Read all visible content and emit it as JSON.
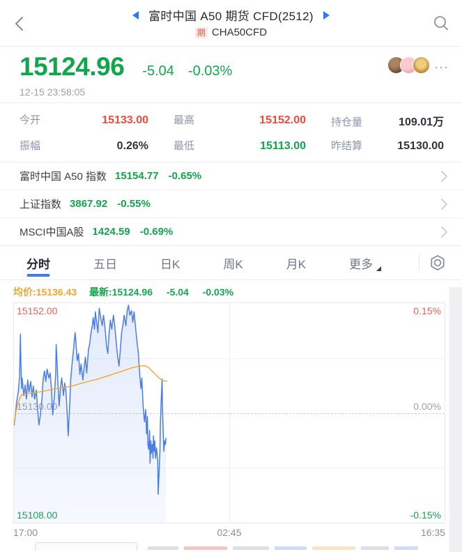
{
  "header": {
    "title": "富时中国 A50 期货 CFD(2512)",
    "badge": "期",
    "code": "CHA50CFD"
  },
  "quote": {
    "price": "15124.96",
    "change": "-5.04",
    "change_pct": "-0.03%",
    "timestamp": "12-15 23:58:05",
    "more": "···"
  },
  "stats": {
    "rows": [
      [
        {
          "label": "今开",
          "value": "15133.00"
        },
        {
          "label": "最高",
          "value": "15152.00"
        },
        {
          "label": "持仓量",
          "value": "109.01万"
        }
      ],
      [
        {
          "label": "振幅",
          "value": "0.26%"
        },
        {
          "label": "最低",
          "value": "15113.00"
        },
        {
          "label": "昨结算",
          "value": "15130.00"
        }
      ]
    ]
  },
  "indices": [
    {
      "name": "富时中国 A50 指数",
      "value": "15154.77",
      "pct": "-0.65%"
    },
    {
      "name": "上证指数",
      "value": "3867.92",
      "pct": "-0.55%"
    },
    {
      "name": "MSCI中国A股",
      "value": "1424.59",
      "pct": "-0.69%"
    }
  ],
  "tabs": {
    "items": [
      {
        "label": "分时"
      },
      {
        "label": "五日"
      },
      {
        "label": "日K"
      },
      {
        "label": "周K"
      },
      {
        "label": "月K"
      },
      {
        "label": "更多"
      }
    ]
  },
  "legend": {
    "avg": "均价:15136.43",
    "last": "最新:15124.96",
    "chg": "-5.04",
    "pct": "-0.03%"
  },
  "colors": {
    "up_red": "#f5483c",
    "down_green": "#12a64c",
    "price_line_blue": "#4a7de8",
    "avg_line_orange": "#f5a62b",
    "accent_blue": "#3b7bf5"
  },
  "chart_data": {
    "type": "line",
    "title": "分时 intraday line",
    "ylim": [
      15108,
      15152
    ],
    "baseline": 15130,
    "y_left": [
      "15152.00",
      "15130.00",
      "15108.00"
    ],
    "y_right": [
      "0.15%",
      "0.00%",
      "-0.15%"
    ],
    "x_ticks": [
      "17:00",
      "02:45",
      "16:35"
    ],
    "grid": "quarter horizontal lines, dashed midline, vertical center line",
    "series": [
      {
        "name": "price",
        "color": "#4a7de8",
        "fill": true,
        "points": [
          [
            0,
            15127.5
          ],
          [
            0.003,
            15129.3
          ],
          [
            0.006,
            15132.1
          ],
          [
            0.01,
            15134.2
          ],
          [
            0.013,
            15137.0
          ],
          [
            0.015,
            15145.8
          ],
          [
            0.016,
            15140.5
          ],
          [
            0.018,
            15134.9
          ],
          [
            0.019,
            15137.0
          ],
          [
            0.023,
            15133.5
          ],
          [
            0.026,
            15135.6
          ],
          [
            0.029,
            15132.8
          ],
          [
            0.032,
            15136.6
          ],
          [
            0.035,
            15134.2
          ],
          [
            0.039,
            15136.3
          ],
          [
            0.042,
            15133.2
          ],
          [
            0.045,
            15135.4
          ],
          [
            0.048,
            15132.8
          ],
          [
            0.052,
            15134.6
          ],
          [
            0.055,
            15130.7
          ],
          [
            0.058,
            15127.6
          ],
          [
            0.061,
            15129.3
          ],
          [
            0.065,
            15132.8
          ],
          [
            0.068,
            15137.0
          ],
          [
            0.071,
            15138.4
          ],
          [
            0.074,
            15136.3
          ],
          [
            0.077,
            15138.8
          ],
          [
            0.081,
            15137.0
          ],
          [
            0.084,
            15138.0
          ],
          [
            0.087,
            15134.9
          ],
          [
            0.09,
            15129.6
          ],
          [
            0.094,
            15133.5
          ],
          [
            0.097,
            15137.7
          ],
          [
            0.098,
            15143.7
          ],
          [
            0.1,
            15140.5
          ],
          [
            0.102,
            15136.3
          ],
          [
            0.105,
            15131.4
          ],
          [
            0.108,
            15134.9
          ],
          [
            0.111,
            15137.0
          ],
          [
            0.115,
            15133.5
          ],
          [
            0.118,
            15136.0
          ],
          [
            0.121,
            15134.2
          ],
          [
            0.124,
            15129.3
          ],
          [
            0.126,
            15125.4
          ],
          [
            0.129,
            15130.7
          ],
          [
            0.132,
            15137.0
          ],
          [
            0.135,
            15139.8
          ],
          [
            0.139,
            15143.3
          ],
          [
            0.142,
            15146.1
          ],
          [
            0.144,
            15144.0
          ],
          [
            0.147,
            15140.5
          ],
          [
            0.15,
            15141.9
          ],
          [
            0.153,
            15137.7
          ],
          [
            0.156,
            15139.8
          ],
          [
            0.16,
            15136.6
          ],
          [
            0.163,
            15139.1
          ],
          [
            0.166,
            15141.2
          ],
          [
            0.169,
            15138.0
          ],
          [
            0.173,
            15142.6
          ],
          [
            0.176,
            15144.0
          ],
          [
            0.179,
            15146.1
          ],
          [
            0.182,
            15147.5
          ],
          [
            0.184,
            15149.1
          ],
          [
            0.187,
            15146.8
          ],
          [
            0.189,
            15150.3
          ],
          [
            0.192,
            15148.2
          ],
          [
            0.195,
            15146.1
          ],
          [
            0.198,
            15151.0
          ],
          [
            0.202,
            15148.9
          ],
          [
            0.205,
            15147.5
          ],
          [
            0.208,
            15149.6
          ],
          [
            0.211,
            15147.5
          ],
          [
            0.215,
            15143.5
          ],
          [
            0.218,
            15141.9
          ],
          [
            0.221,
            15146.1
          ],
          [
            0.224,
            15148.6
          ],
          [
            0.227,
            15146.8
          ],
          [
            0.231,
            15149.6
          ],
          [
            0.234,
            15147.5
          ],
          [
            0.237,
            15144.7
          ],
          [
            0.24,
            15141.9
          ],
          [
            0.244,
            15139.4
          ],
          [
            0.247,
            15142.6
          ],
          [
            0.25,
            15146.1
          ],
          [
            0.253,
            15147.7
          ],
          [
            0.256,
            15149.6
          ],
          [
            0.26,
            15147.5
          ],
          [
            0.263,
            15150.5
          ],
          [
            0.266,
            15151.6
          ],
          [
            0.269,
            15149.6
          ],
          [
            0.273,
            15150.5
          ],
          [
            0.276,
            15148.2
          ],
          [
            0.279,
            15150.3
          ],
          [
            0.282,
            15147.5
          ],
          [
            0.285,
            15144.9
          ],
          [
            0.289,
            15141.9
          ],
          [
            0.292,
            15137.7
          ],
          [
            0.295,
            15134.9
          ],
          [
            0.297,
            15137.0
          ],
          [
            0.3,
            15131.4
          ],
          [
            0.303,
            15128.2
          ],
          [
            0.306,
            15130.7
          ],
          [
            0.308,
            15125.8
          ],
          [
            0.31,
            15129.3
          ],
          [
            0.311,
            15123.7
          ],
          [
            0.313,
            15122.7
          ],
          [
            0.315,
            15126.5
          ],
          [
            0.316,
            15119.9
          ],
          [
            0.318,
            15124.4
          ],
          [
            0.319,
            15121.9
          ],
          [
            0.321,
            15123.7
          ],
          [
            0.323,
            15120.9
          ],
          [
            0.324,
            15125.4
          ],
          [
            0.326,
            15122.3
          ],
          [
            0.327,
            15124.4
          ],
          [
            0.329,
            15120.9
          ],
          [
            0.331,
            15123.0
          ],
          [
            0.334,
            15120.2
          ],
          [
            0.335,
            15113.7
          ],
          [
            0.337,
            15118.1
          ],
          [
            0.339,
            15122.3
          ],
          [
            0.34,
            15127.9
          ],
          [
            0.342,
            15132.8
          ],
          [
            0.344,
            15136.8
          ],
          [
            0.345,
            15130.7
          ],
          [
            0.347,
            15125.4
          ],
          [
            0.348,
            15122.3
          ],
          [
            0.35,
            15124.4
          ],
          [
            0.352,
            15123.7
          ],
          [
            0.353,
            15125.0
          ]
        ]
      },
      {
        "name": "average",
        "color": "#f5a62b",
        "fill": false,
        "points": [
          [
            0,
            15127.9
          ],
          [
            0.005,
            15130.4
          ],
          [
            0.01,
            15132.1
          ],
          [
            0.015,
            15133.2
          ],
          [
            0.021,
            15133.8
          ],
          [
            0.034,
            15133.9
          ],
          [
            0.066,
            15134.3
          ],
          [
            0.098,
            15134.9
          ],
          [
            0.131,
            15135.3
          ],
          [
            0.163,
            15136.1
          ],
          [
            0.195,
            15136.8
          ],
          [
            0.227,
            15137.7
          ],
          [
            0.252,
            15138.4
          ],
          [
            0.276,
            15139.1
          ],
          [
            0.292,
            15139.4
          ],
          [
            0.303,
            15139.5
          ],
          [
            0.311,
            15139.2
          ],
          [
            0.321,
            15138.4
          ],
          [
            0.331,
            15137.5
          ],
          [
            0.34,
            15136.8
          ],
          [
            0.347,
            15136.4
          ],
          [
            0.356,
            15136.4
          ]
        ]
      }
    ]
  }
}
